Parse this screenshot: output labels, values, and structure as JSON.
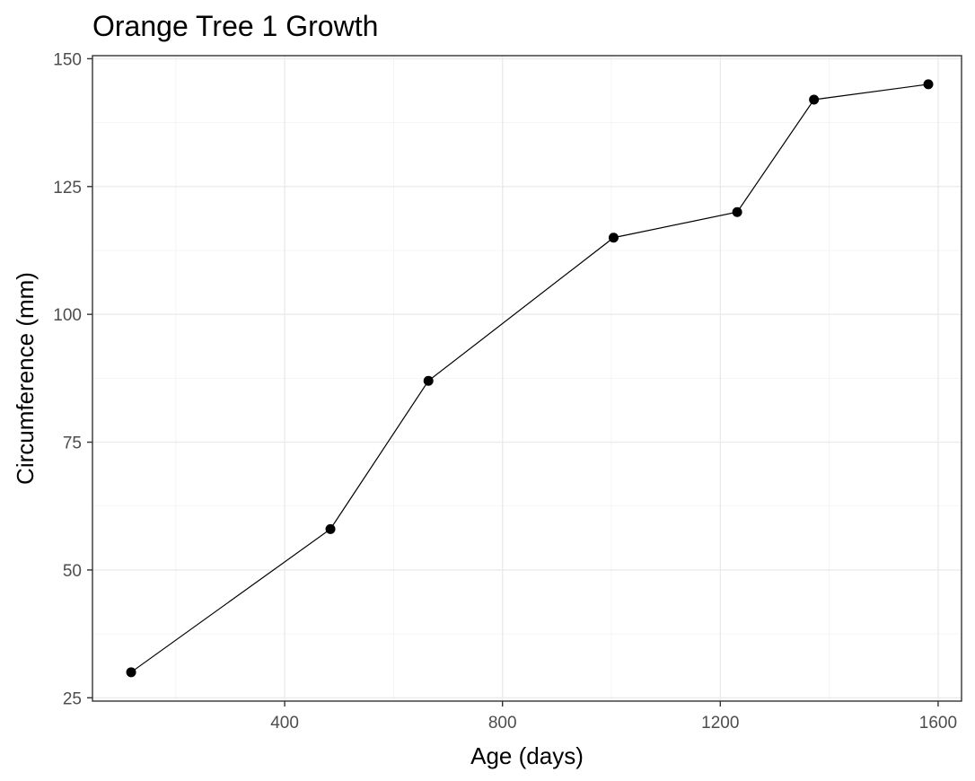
{
  "chart_data": {
    "type": "line",
    "title": "Orange Tree 1 Growth",
    "xlabel": "Age (days)",
    "ylabel": "Circumference (mm)",
    "xlim": [
      47,
      1643
    ],
    "ylim": [
      25,
      150
    ],
    "x_ticks": [
      400,
      800,
      1200,
      1600
    ],
    "y_ticks": [
      25,
      50,
      75,
      100,
      125,
      150
    ],
    "grid": true,
    "points": true,
    "series": [
      {
        "x": [
          118,
          484,
          664,
          1004,
          1231,
          1372,
          1582
        ],
        "y": [
          30,
          58,
          87,
          115,
          120,
          142,
          145
        ]
      }
    ]
  }
}
